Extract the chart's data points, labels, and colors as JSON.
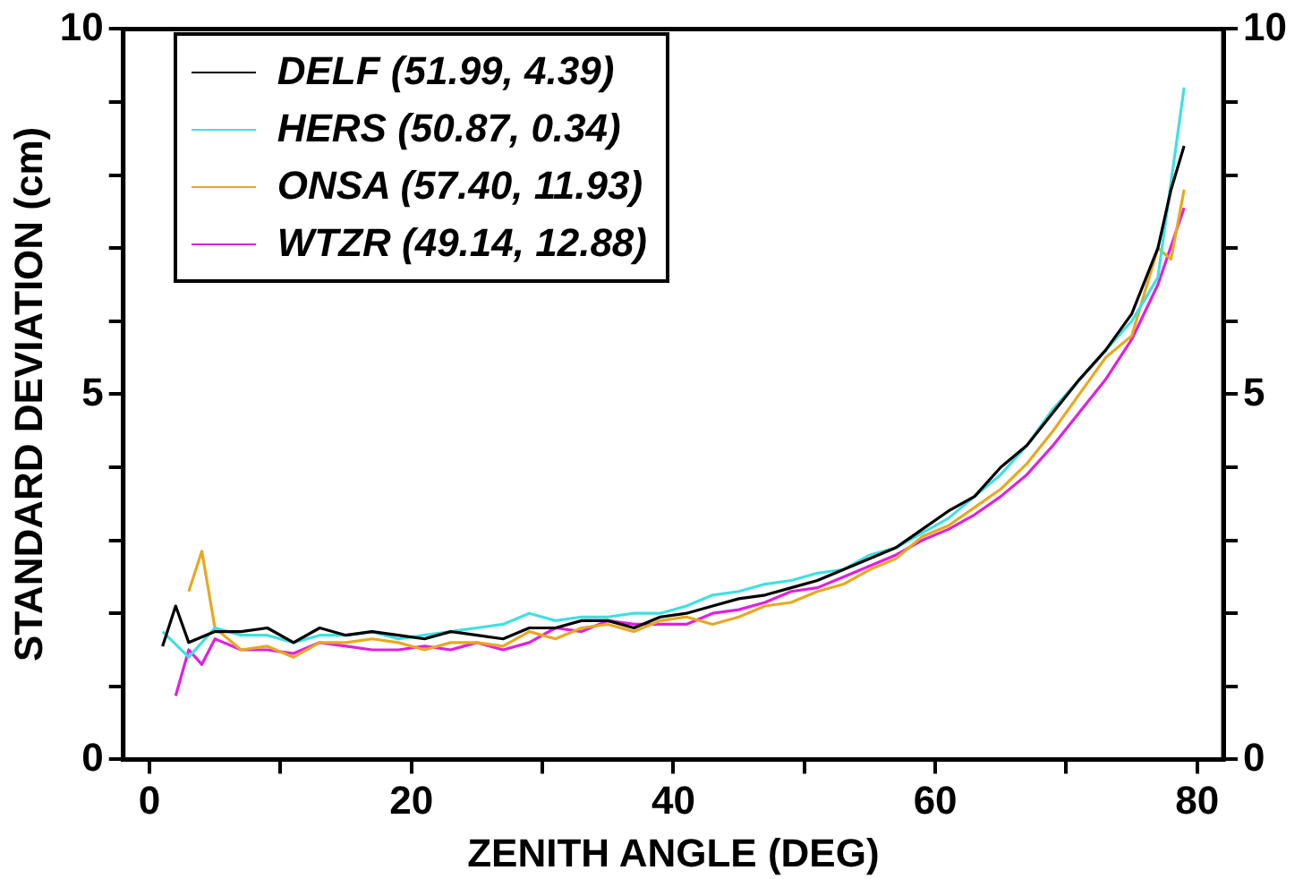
{
  "chart_data": {
    "type": "line",
    "xlabel": "ZENITH ANGLE (DEG)",
    "ylabel": "STANDARD DEVIATION (cm)",
    "xlim": [
      -2,
      82
    ],
    "xticks": [
      0,
      {
        "value": 10,
        "label": null
      },
      20,
      {
        "value": 30,
        "label": null
      },
      40,
      {
        "value": 50,
        "label": null
      },
      60,
      {
        "value": 70,
        "label": null
      },
      80
    ],
    "ylim": [
      0,
      10
    ],
    "yticks": [
      0,
      {
        "value": 1,
        "label": null
      },
      {
        "value": 2,
        "label": null
      },
      {
        "value": 3,
        "label": null
      },
      {
        "value": 4,
        "label": null
      },
      5,
      {
        "value": 6,
        "label": null
      },
      {
        "value": 7,
        "label": null
      },
      {
        "value": 8,
        "label": null
      },
      {
        "value": 9,
        "label": null
      },
      10
    ],
    "y2lim": [
      0,
      10
    ],
    "y2ticks": [
      0,
      {
        "value": 1,
        "label": null
      },
      {
        "value": 2,
        "label": null
      },
      {
        "value": 3,
        "label": null
      },
      {
        "value": 4,
        "label": null
      },
      5,
      {
        "value": 6,
        "label": null
      },
      {
        "value": 7,
        "label": null
      },
      {
        "value": 8,
        "label": null
      },
      {
        "value": 9,
        "label": null
      },
      10
    ],
    "grid": false,
    "legend": "top left",
    "marker": "none",
    "line_style": "solid",
    "series": [
      {
        "name": "DELF (51.99, 4.39)",
        "color": "#000000",
        "x": [
          1,
          2,
          3,
          5,
          7,
          9,
          11,
          13,
          15,
          17,
          19,
          21,
          23,
          25,
          27,
          29,
          31,
          33,
          35,
          37,
          39,
          41,
          43,
          45,
          47,
          49,
          51,
          53,
          55,
          57,
          59,
          61,
          63,
          65,
          67,
          69,
          71,
          73,
          75,
          77,
          78,
          79
        ],
        "values": [
          1.55,
          2.1,
          1.6,
          1.75,
          1.75,
          1.8,
          1.6,
          1.8,
          1.7,
          1.75,
          1.7,
          1.65,
          1.75,
          1.7,
          1.65,
          1.8,
          1.8,
          1.9,
          1.9,
          1.8,
          1.95,
          2.0,
          2.1,
          2.2,
          2.25,
          2.35,
          2.45,
          2.6,
          2.75,
          2.9,
          3.15,
          3.4,
          3.6,
          4.0,
          4.3,
          4.75,
          5.2,
          5.6,
          6.1,
          7.0,
          7.8,
          8.4
        ]
      },
      {
        "name": "HERS (50.87, 0.34)",
        "color": "#40e0e0",
        "x": [
          1,
          3,
          5,
          7,
          9,
          11,
          13,
          15,
          17,
          19,
          21,
          23,
          25,
          27,
          29,
          31,
          33,
          35,
          37,
          39,
          41,
          43,
          45,
          47,
          49,
          51,
          53,
          55,
          57,
          59,
          61,
          63,
          65,
          67,
          69,
          71,
          73,
          75,
          77,
          79
        ],
        "values": [
          1.75,
          1.4,
          1.8,
          1.7,
          1.7,
          1.6,
          1.7,
          1.7,
          1.75,
          1.65,
          1.7,
          1.75,
          1.8,
          1.85,
          2.0,
          1.9,
          1.95,
          1.95,
          2.0,
          2.0,
          2.1,
          2.25,
          2.3,
          2.4,
          2.45,
          2.55,
          2.6,
          2.8,
          2.9,
          3.1,
          3.3,
          3.6,
          3.9,
          4.3,
          4.8,
          5.2,
          5.6,
          6.0,
          6.6,
          9.2
        ]
      },
      {
        "name": "ONSA (57.40, 11.93)",
        "color": "#e8a820",
        "x": [
          3,
          4,
          5,
          7,
          9,
          11,
          13,
          15,
          17,
          19,
          21,
          23,
          25,
          27,
          29,
          31,
          33,
          35,
          37,
          39,
          41,
          43,
          45,
          47,
          49,
          51,
          53,
          55,
          57,
          59,
          61,
          63,
          65,
          67,
          69,
          71,
          73,
          75,
          77,
          78,
          79
        ],
        "values": [
          2.3,
          2.85,
          1.8,
          1.5,
          1.55,
          1.4,
          1.6,
          1.6,
          1.65,
          1.6,
          1.5,
          1.6,
          1.6,
          1.55,
          1.75,
          1.65,
          1.8,
          1.85,
          1.75,
          1.9,
          1.95,
          1.85,
          1.95,
          2.1,
          2.15,
          2.3,
          2.4,
          2.6,
          2.75,
          3.05,
          3.2,
          3.45,
          3.7,
          4.05,
          4.5,
          5.0,
          5.5,
          5.8,
          7.0,
          6.85,
          7.8
        ]
      },
      {
        "name": "WTZR (49.14, 12.88)",
        "color": "#e020e0",
        "x": [
          2,
          3,
          4,
          5,
          7,
          9,
          11,
          13,
          15,
          17,
          19,
          21,
          23,
          25,
          27,
          29,
          31,
          33,
          35,
          37,
          39,
          41,
          43,
          45,
          47,
          49,
          51,
          53,
          55,
          57,
          59,
          61,
          63,
          65,
          67,
          69,
          71,
          73,
          75,
          77,
          79
        ],
        "values": [
          0.87,
          1.5,
          1.3,
          1.65,
          1.5,
          1.5,
          1.45,
          1.6,
          1.55,
          1.5,
          1.5,
          1.55,
          1.5,
          1.6,
          1.5,
          1.6,
          1.8,
          1.75,
          1.9,
          1.85,
          1.85,
          1.85,
          2.0,
          2.05,
          2.15,
          2.3,
          2.35,
          2.5,
          2.65,
          2.8,
          3.0,
          3.15,
          3.35,
          3.6,
          3.9,
          4.3,
          4.75,
          5.2,
          5.75,
          6.5,
          7.55
        ]
      }
    ]
  }
}
